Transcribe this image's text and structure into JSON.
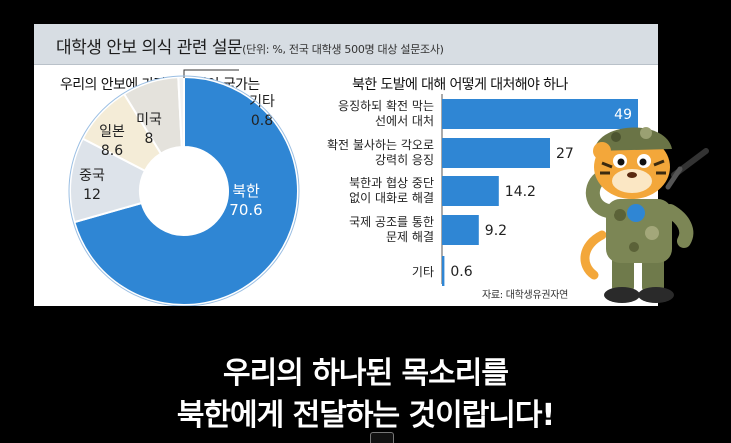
{
  "header": {
    "title": "대학생 안보 의식 관련 설문",
    "note": "(단위: %, 전국 대학생 500명 대상 설문조사)"
  },
  "chart_data": [
    {
      "type": "pie",
      "title": "우리의 안보에 가장 위협적인 국가는",
      "unit": "%",
      "slices": [
        {
          "label": "북한",
          "value": 70.6,
          "color": "#2f86d4"
        },
        {
          "label": "중국",
          "value": 12,
          "color": "#dde3ea"
        },
        {
          "label": "일본",
          "value": 8.6,
          "color": "#f4ecd7"
        },
        {
          "label": "미국",
          "value": 8,
          "color": "#e4e2dc"
        },
        {
          "label": "기타",
          "value": 0.8,
          "color": "#f3f3f3"
        }
      ]
    },
    {
      "type": "bar",
      "orientation": "horizontal",
      "title": "북한 도발에 대해 어떻게 대처해야 하나",
      "unit": "%",
      "categories": [
        [
          "응징하되 확전 막는",
          "선에서 대처"
        ],
        [
          "확전 불사하는 각오로",
          "강력히 응징"
        ],
        [
          "북한과 협상 중단",
          "없이 대화로 해결"
        ],
        [
          "국제 공조를 통한",
          "문제 해결"
        ],
        [
          "기타"
        ]
      ],
      "values": [
        49,
        27,
        14.2,
        9.2,
        0.6
      ],
      "value_labels": [
        "49",
        "27",
        "14.2",
        "9.2",
        "0.6"
      ],
      "color": "#2f86d4"
    }
  ],
  "source": "자료: 대학생유권자연",
  "captions": {
    "line1": "우리의 하나된 목소리를",
    "line2": "북한에게 전달하는 것이랍니다!"
  },
  "icons": {
    "mascot": "tiger-soldier-mascot-icon",
    "player": "video-play-icon"
  }
}
